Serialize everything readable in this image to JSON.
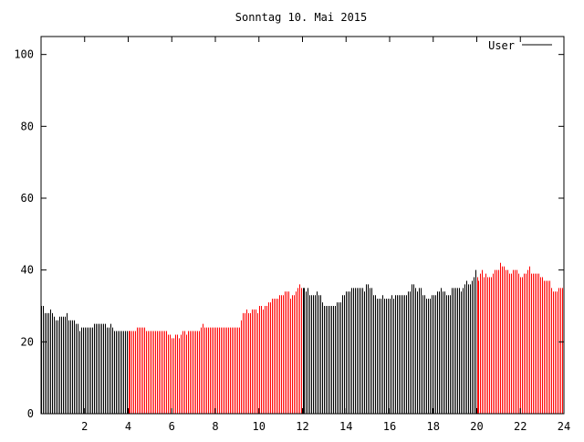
{
  "chart_data": {
    "type": "bar",
    "title": "Sonntag 10. Mai 2015",
    "xlabel": "",
    "ylabel": "",
    "xlim": [
      0,
      24
    ],
    "ylim": [
      0,
      105
    ],
    "x_ticks": [
      "2",
      "4",
      "6",
      "8",
      "10",
      "12",
      "14",
      "16",
      "18",
      "20",
      "22",
      "24"
    ],
    "y_ticks": [
      "0",
      "20",
      "40",
      "60",
      "80",
      "100"
    ],
    "grid": false,
    "legend": {
      "position": "top-right",
      "entries": [
        {
          "name": "User",
          "color": "#000000"
        }
      ]
    },
    "color_segments": [
      {
        "from_hour": 0,
        "to_hour": 4,
        "color": "#000000"
      },
      {
        "from_hour": 4,
        "to_hour": 12,
        "color": "#ff0000"
      },
      {
        "from_hour": 12,
        "to_hour": 20,
        "color": "#000000"
      },
      {
        "from_hour": 20,
        "to_hour": 24,
        "color": "#ff0000"
      }
    ],
    "series": [
      {
        "name": "User",
        "values": [
          30,
          30,
          28,
          28,
          28,
          29,
          28,
          27,
          26,
          26,
          27,
          27,
          27,
          27,
          28,
          26,
          26,
          26,
          26,
          25,
          25,
          23,
          24,
          24,
          24,
          24,
          24,
          24,
          24,
          25,
          25,
          25,
          25,
          25,
          25,
          25,
          24,
          24,
          25,
          24,
          23,
          23,
          23,
          23,
          23,
          23,
          23,
          23,
          23,
          23,
          23,
          23,
          23,
          24,
          24,
          24,
          24,
          24,
          23,
          23,
          23,
          23,
          23,
          23,
          23,
          23,
          23,
          23,
          23,
          23,
          22,
          22,
          21,
          21,
          22,
          22,
          21,
          22,
          23,
          23,
          22,
          23,
          23,
          23,
          23,
          23,
          23,
          23,
          24,
          25,
          24,
          24,
          24,
          24,
          24,
          24,
          24,
          24,
          24,
          24,
          24,
          24,
          24,
          24,
          24,
          24,
          24,
          24,
          24,
          24,
          26,
          28,
          28,
          29,
          28,
          28,
          29,
          29,
          29,
          28,
          30,
          30,
          29,
          30,
          30,
          31,
          31,
          32,
          32,
          32,
          32,
          33,
          33,
          33,
          34,
          34,
          34,
          32,
          33,
          33,
          34,
          35,
          36,
          35,
          35,
          35,
          34,
          35,
          33,
          33,
          33,
          33,
          34,
          33,
          33,
          31,
          30,
          30,
          30,
          30,
          30,
          30,
          30,
          31,
          31,
          31,
          33,
          33,
          34,
          34,
          34,
          35,
          35,
          35,
          35,
          35,
          35,
          35,
          34,
          36,
          36,
          35,
          35,
          33,
          33,
          32,
          32,
          32,
          33,
          32,
          32,
          32,
          32,
          33,
          32,
          33,
          33,
          33,
          33,
          33,
          33,
          33,
          34,
          34,
          36,
          36,
          35,
          34,
          35,
          35,
          33,
          33,
          32,
          32,
          32,
          33,
          33,
          33,
          34,
          34,
          35,
          34,
          34,
          33,
          33,
          33,
          35,
          35,
          35,
          35,
          35,
          34,
          35,
          36,
          37,
          36,
          36,
          37,
          38,
          40,
          38,
          37,
          39,
          40,
          38,
          39,
          38,
          38,
          38,
          39,
          40,
          40,
          40,
          42,
          41,
          41,
          40,
          40,
          39,
          39,
          40,
          40,
          40,
          39,
          38,
          38,
          39,
          39,
          40,
          41,
          39,
          39,
          39,
          39,
          39,
          38,
          38,
          37,
          37,
          37,
          37,
          35,
          34,
          34,
          34,
          35,
          35,
          35
        ]
      }
    ]
  }
}
